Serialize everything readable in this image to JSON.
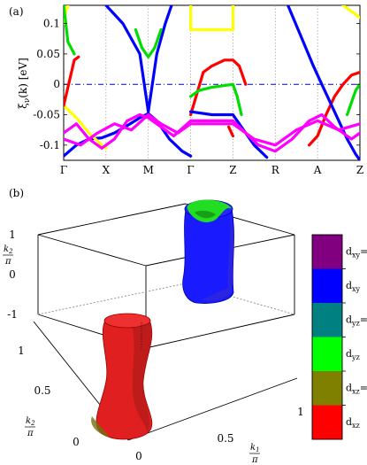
{
  "panel_a": {
    "label": "(a)",
    "chart_data": {
      "type": "line",
      "ylabel_main": "ξ",
      "ylabel_sub": "ν",
      "ylabel_rest": "(k) [eV]",
      "ylim": [
        -0.125,
        0.13
      ],
      "yticks": [
        0.1,
        0.05,
        0,
        -0.05,
        -0.1
      ],
      "ytick_labels": [
        "0.1",
        "0.05",
        "0",
        "-0.05",
        "-0.1"
      ],
      "kpoints": [
        "Γ",
        "X",
        "M",
        "Γ",
        "Z",
        "R",
        "A",
        "Z"
      ],
      "kpos": [
        0,
        1,
        2,
        3,
        4,
        5,
        6,
        7
      ],
      "fermi_level": 0,
      "series": [
        {
          "color": "#0000ff",
          "points": [
            [
              0,
              -0.118
            ],
            [
              0.3,
              -0.1
            ],
            [
              0.6,
              -0.09
            ],
            [
              0.9,
              -0.088
            ],
            [
              1.2,
              -0.08
            ],
            [
              1.5,
              -0.068
            ],
            [
              1.8,
              -0.055
            ],
            [
              2.0,
              -0.048
            ],
            [
              2.2,
              -0.06
            ],
            [
              2.5,
              -0.09
            ],
            [
              2.8,
              -0.11
            ],
            [
              3.0,
              -0.118
            ]
          ]
        },
        {
          "color": "#0000ff",
          "points": [
            [
              1.0,
              0.13
            ],
            [
              1.4,
              0.1
            ],
            [
              1.8,
              0.05
            ],
            [
              2.0,
              -0.045
            ],
            [
              2.2,
              0.05
            ],
            [
              2.4,
              0.1
            ],
            [
              2.55,
              0.13
            ]
          ]
        },
        {
          "color": "#00dd00",
          "points": [
            [
              1.7,
              0.09
            ],
            [
              1.85,
              0.06
            ],
            [
              2.0,
              0.045
            ],
            [
              2.15,
              0.06
            ],
            [
              2.3,
              0.09
            ]
          ]
        },
        {
          "color": "#ffff00",
          "points": [
            [
              0,
              0.1
            ],
            [
              0.05,
              0.12
            ],
            [
              0.1,
              0.13
            ]
          ]
        },
        {
          "color": "#ffff00",
          "points": [
            [
              0,
              -0.035
            ],
            [
              0.3,
              -0.055
            ],
            [
              0.6,
              -0.08
            ],
            [
              0.9,
              -0.1
            ],
            [
              1.0,
              -0.105
            ]
          ]
        },
        {
          "color": "#ffff00",
          "points": [
            [
              3,
              0.13
            ],
            [
              3,
              0.09
            ],
            [
              4,
              0.09
            ],
            [
              4,
              0.13
            ]
          ]
        },
        {
          "color": "#ffff00",
          "points": [
            [
              6.6,
              0.13
            ],
            [
              6.8,
              0.12
            ],
            [
              7,
              0.11
            ]
          ]
        },
        {
          "color": "#ff0000",
          "points": [
            [
              0,
              -0.035
            ],
            [
              0.15,
              0.01
            ],
            [
              0.25,
              0.04
            ],
            [
              0.35,
              0.045
            ]
          ]
        },
        {
          "color": "#ff0000",
          "points": [
            [
              3,
              -0.05
            ],
            [
              3.3,
              0.02
            ],
            [
              3.5,
              0.03
            ],
            [
              3.8,
              0.04
            ],
            [
              4,
              0.04
            ],
            [
              4.15,
              0.03
            ],
            [
              4.3,
              0.0
            ]
          ]
        },
        {
          "color": "#ff0000",
          "points": [
            [
              3.9,
              -0.07
            ],
            [
              4.0,
              -0.085
            ]
          ]
        },
        {
          "color": "#ff0000",
          "points": [
            [
              5.8,
              -0.1
            ],
            [
              6.0,
              -0.085
            ],
            [
              6.2,
              -0.05
            ],
            [
              6.4,
              -0.02
            ],
            [
              6.6,
              0.0
            ],
            [
              6.8,
              0.015
            ],
            [
              7,
              0.02
            ]
          ]
        },
        {
          "color": "#00dd00",
          "points": [
            [
              3,
              -0.02
            ],
            [
              3.2,
              -0.01
            ],
            [
              3.5,
              -0.005
            ],
            [
              3.8,
              -0.002
            ],
            [
              4,
              0.0
            ],
            [
              4.1,
              -0.02
            ],
            [
              4.2,
              -0.05
            ]
          ]
        },
        {
          "color": "#00dd00",
          "points": [
            [
              6.7,
              -0.05
            ],
            [
              6.8,
              -0.03
            ],
            [
              6.9,
              -0.01
            ],
            [
              7,
              0.0
            ]
          ]
        },
        {
          "color": "#00dd00",
          "points": [
            [
              0,
              0.13
            ],
            [
              0.05,
              0.1
            ],
            [
              0.1,
              0.07
            ],
            [
              0.25,
              0.05
            ]
          ]
        },
        {
          "color": "#0000ff",
          "points": [
            [
              3,
              -0.045
            ],
            [
              3.5,
              -0.05
            ],
            [
              4,
              -0.05
            ],
            [
              4.2,
              -0.07
            ],
            [
              4.5,
              -0.1
            ],
            [
              4.8,
              -0.12
            ]
          ]
        },
        {
          "color": "#0000ff",
          "points": [
            [
              5.3,
              0.13
            ],
            [
              5.6,
              0.08
            ],
            [
              5.9,
              0.03
            ],
            [
              6.1,
              0.0
            ],
            [
              6.3,
              -0.03
            ],
            [
              6.5,
              -0.06
            ],
            [
              6.7,
              -0.09
            ],
            [
              6.9,
              -0.115
            ],
            [
              7,
              -0.125
            ]
          ]
        },
        {
          "color": "#ff00ff",
          "points": [
            [
              0,
              -0.08
            ],
            [
              0.3,
              -0.065
            ],
            [
              0.6,
              -0.09
            ],
            [
              0.9,
              -0.105
            ],
            [
              1.2,
              -0.09
            ],
            [
              1.5,
              -0.06
            ],
            [
              1.8,
              -0.05
            ],
            [
              2.0,
              -0.055
            ],
            [
              2.3,
              -0.07
            ],
            [
              2.6,
              -0.085
            ],
            [
              3,
              -0.06
            ],
            [
              3.5,
              -0.06
            ],
            [
              4,
              -0.06
            ],
            [
              4.3,
              -0.08
            ],
            [
              4.6,
              -0.1
            ],
            [
              5,
              -0.11
            ],
            [
              5.4,
              -0.09
            ],
            [
              5.8,
              -0.06
            ],
            [
              6.1,
              -0.05
            ],
            [
              6.4,
              -0.07
            ],
            [
              6.8,
              -0.09
            ],
            [
              7,
              -0.08
            ]
          ]
        },
        {
          "color": "#ff00ff",
          "points": [
            [
              0,
              -0.09
            ],
            [
              0.4,
              -0.1
            ],
            [
              0.8,
              -0.08
            ],
            [
              1.2,
              -0.065
            ],
            [
              1.6,
              -0.075
            ],
            [
              2.0,
              -0.05
            ],
            [
              2.3,
              -0.065
            ],
            [
              2.7,
              -0.08
            ],
            [
              3,
              -0.065
            ],
            [
              4,
              -0.065
            ],
            [
              4.5,
              -0.09
            ],
            [
              5,
              -0.1
            ],
            [
              5.5,
              -0.075
            ],
            [
              6,
              -0.06
            ],
            [
              6.5,
              -0.075
            ],
            [
              7,
              -0.065
            ]
          ]
        }
      ]
    }
  },
  "panel_b": {
    "label": "(b)",
    "k2_axis": {
      "label_top": "k",
      "label_sub": "2",
      "label_den": "π",
      "ticks": [
        "1",
        "0",
        "-1"
      ]
    },
    "k1_axis": {
      "label_top": "k",
      "label_sub": "1",
      "label_den": "π",
      "ticks": [
        "0",
        "0.5",
        "1"
      ]
    },
    "k2_depth_axis": {
      "label_top": "k",
      "label_sub": "2",
      "label_den": "π",
      "ticks": [
        "1",
        "0.5",
        "0"
      ]
    },
    "colorbar": {
      "entries": [
        {
          "label_main": "d",
          "label_sub": "xy",
          "label_eq": "=d",
          "label_sub2": "xz",
          "color": "#80007f"
        },
        {
          "label_main": "d",
          "label_sub": "xy",
          "label_eq": "",
          "label_sub2": "",
          "color": "#0000ff"
        },
        {
          "label_main": "d",
          "label_sub": "yz",
          "label_eq": "=d",
          "label_sub2": "xy",
          "color": "#008080"
        },
        {
          "label_main": "d",
          "label_sub": "yz",
          "label_eq": "",
          "label_sub2": "",
          "color": "#00ff00"
        },
        {
          "label_main": "d",
          "label_sub": "xz",
          "label_eq": "=d",
          "label_sub2": "yz",
          "color": "#808000"
        },
        {
          "label_main": "d",
          "label_sub": "xz",
          "label_eq": "",
          "label_sub2": "",
          "color": "#ff0000"
        }
      ]
    }
  }
}
